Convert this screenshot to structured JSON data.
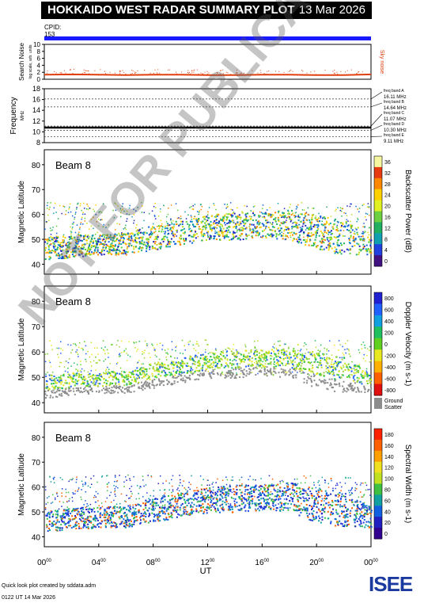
{
  "title": "HOKKAIDO WEST RADAR SUMMARY PLOT",
  "date": "13 Mar 2026",
  "cpid_label": "CPID:",
  "cpid_value": "153",
  "watermark": "NOT FOR PUBLICATION",
  "footer": {
    "line1": "Quick look plot created by sddata.adm",
    "line2": "0122 UT 14 Mar 2026",
    "logo": "ISEE"
  },
  "colors": {
    "cpid_bar": "#1a1aff",
    "noise": "#e04010",
    "ground_scatter": "#8c8c8c"
  },
  "chart_data": [
    {
      "type": "line",
      "panel": "search-noise",
      "ylabel": "Search Noise",
      "ysub": "log scale, arb. units",
      "side_label": "Sky noise",
      "ylim": [
        0,
        10
      ],
      "yticks": [
        "0",
        "2",
        "4",
        "6",
        "8",
        "10"
      ],
      "x_hours": [
        0,
        2,
        4,
        6,
        8,
        10,
        12,
        14,
        16,
        18,
        20,
        22,
        24
      ],
      "values": [
        1.3,
        1.4,
        1.3,
        1.2,
        1.3,
        1.3,
        1.2,
        1.2,
        1.3,
        1.3,
        1.2,
        1.2,
        1.4
      ]
    },
    {
      "type": "line",
      "panel": "frequency",
      "ylabel": "Frequency",
      "yunit": "MHz",
      "ylim": [
        8,
        18
      ],
      "yticks": [
        "8",
        "10",
        "12",
        "14",
        "16",
        "18"
      ],
      "bands": [
        {
          "label": "freq band A",
          "value": "16.11 MHz",
          "mhz": 16.11
        },
        {
          "label": "freq band B",
          "value": "14.64 MHz",
          "mhz": 14.64
        },
        {
          "label": "freq band C",
          "value": "11.07 MHz",
          "mhz": 11.07
        },
        {
          "label": "freq band D",
          "value": "10.30 MHz",
          "mhz": 10.3
        },
        {
          "label": "freq band E",
          "value": "9.11 MHz",
          "mhz": 9.11
        }
      ],
      "trace_mhz": 10.8
    },
    {
      "type": "heatmap",
      "panel": "power",
      "beam": "Beam  8",
      "ylabel": "Magnetic Latitude",
      "ylim": [
        36,
        86
      ],
      "yticks": [
        "40",
        "50",
        "60",
        "70",
        "80"
      ],
      "colorbar_label": "Backscatter Power (dB)",
      "colorbar_ticks": [
        "0",
        "4",
        "8",
        "12",
        "16",
        "20",
        "24",
        "28",
        "32",
        "36"
      ],
      "band_lower": [
        42,
        43,
        44,
        44,
        46,
        48,
        50,
        50,
        51,
        50,
        46,
        44,
        44
      ],
      "band_upper": [
        51,
        52,
        52,
        53,
        56,
        58,
        60,
        61,
        61,
        62,
        60,
        58,
        52
      ]
    },
    {
      "type": "heatmap",
      "panel": "velocity",
      "beam": "Beam  8",
      "ylabel": "Magnetic Latitude",
      "ylim": [
        36,
        86
      ],
      "yticks": [
        "40",
        "50",
        "60",
        "70",
        "80"
      ],
      "colorbar_label": "Doppler Velocity (m s-1)",
      "colorbar_ticks": [
        "800",
        "600",
        "400",
        "200",
        "0",
        "-200",
        "-400",
        "-600",
        "-800"
      ],
      "ground_scatter_label1": "Ground",
      "ground_scatter_label2": "Scatter",
      "band_lower": [
        42,
        43,
        44,
        44,
        46,
        48,
        50,
        50,
        51,
        50,
        46,
        44,
        44
      ],
      "band_upper": [
        51,
        52,
        52,
        53,
        56,
        58,
        60,
        61,
        61,
        62,
        60,
        58,
        52
      ]
    },
    {
      "type": "heatmap",
      "panel": "width",
      "beam": "Beam  8",
      "ylabel": "Magnetic Latitude",
      "ylim": [
        36,
        86
      ],
      "yticks": [
        "40",
        "50",
        "60",
        "70",
        "80"
      ],
      "colorbar_label": "Spectral Width (m s-1)",
      "colorbar_ticks": [
        "0",
        "20",
        "40",
        "60",
        "80",
        "100",
        "120",
        "140",
        "160",
        "180"
      ],
      "band_lower": [
        42,
        43,
        44,
        44,
        46,
        48,
        50,
        50,
        51,
        50,
        46,
        44,
        44
      ],
      "band_upper": [
        51,
        52,
        52,
        53,
        56,
        58,
        60,
        61,
        61,
        62,
        60,
        58,
        52
      ]
    }
  ],
  "xaxis": {
    "label": "UT",
    "ticks": [
      {
        "h": "00",
        "m": "00"
      },
      {
        "h": "04",
        "m": "00"
      },
      {
        "h": "08",
        "m": "00"
      },
      {
        "h": "12",
        "m": "00"
      },
      {
        "h": "16",
        "m": "00"
      },
      {
        "h": "20",
        "m": "00"
      },
      {
        "h": "00",
        "m": "00"
      }
    ]
  }
}
